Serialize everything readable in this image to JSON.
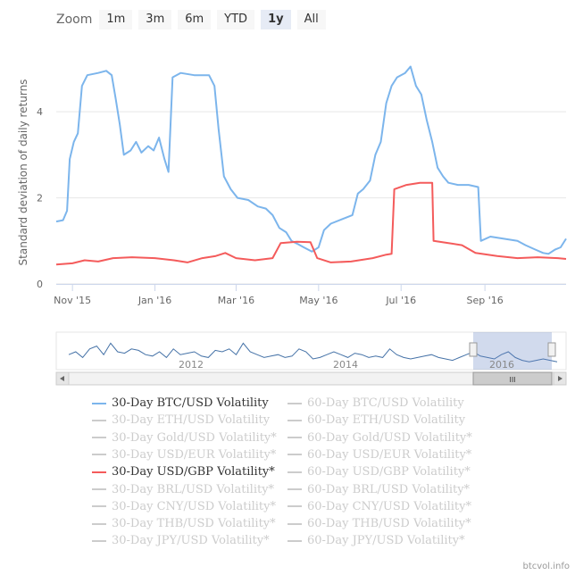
{
  "zoom": {
    "label": "Zoom",
    "buttons": [
      "1m",
      "3m",
      "6m",
      "YTD",
      "1y",
      "All"
    ],
    "selected": "1y"
  },
  "chart_data": {
    "type": "line",
    "ylabel": "Standard deviation of daily returns",
    "ylim": [
      0,
      5.6
    ],
    "yticks": [
      0,
      2,
      4
    ],
    "xlim": [
      "2015-10-20",
      "2016-10-31"
    ],
    "xticks": [
      {
        "date": "2015-11-01",
        "label": "Nov '15"
      },
      {
        "date": "2016-01-01",
        "label": "Jan '16"
      },
      {
        "date": "2016-03-01",
        "label": "Mar '16"
      },
      {
        "date": "2016-05-01",
        "label": "May '16"
      },
      {
        "date": "2016-07-01",
        "label": "Jul '16"
      },
      {
        "date": "2016-09-01",
        "label": "Sep '16"
      }
    ],
    "grid": true,
    "series": [
      {
        "name": "30-Day BTC/USD Volatility",
        "color": "#7cb5ec",
        "points": [
          [
            "2015-10-20",
            1.45
          ],
          [
            "2015-10-25",
            1.48
          ],
          [
            "2015-10-28",
            1.7
          ],
          [
            "2015-10-30",
            2.9
          ],
          [
            "2015-11-02",
            3.3
          ],
          [
            "2015-11-05",
            3.5
          ],
          [
            "2015-11-08",
            4.6
          ],
          [
            "2015-11-12",
            4.85
          ],
          [
            "2015-11-20",
            4.9
          ],
          [
            "2015-11-26",
            4.95
          ],
          [
            "2015-11-30",
            4.85
          ],
          [
            "2015-12-03",
            4.3
          ],
          [
            "2015-12-06",
            3.7
          ],
          [
            "2015-12-09",
            3.0
          ],
          [
            "2015-12-14",
            3.1
          ],
          [
            "2015-12-18",
            3.3
          ],
          [
            "2015-12-22",
            3.05
          ],
          [
            "2015-12-27",
            3.2
          ],
          [
            "2015-12-31",
            3.1
          ],
          [
            "2016-01-04",
            3.4
          ],
          [
            "2016-01-08",
            2.9
          ],
          [
            "2016-01-11",
            2.6
          ],
          [
            "2016-01-14",
            4.8
          ],
          [
            "2016-01-20",
            4.9
          ],
          [
            "2016-01-30",
            4.85
          ],
          [
            "2016-02-10",
            4.85
          ],
          [
            "2016-02-14",
            4.6
          ],
          [
            "2016-02-17",
            3.6
          ],
          [
            "2016-02-21",
            2.5
          ],
          [
            "2016-02-26",
            2.2
          ],
          [
            "2016-03-02",
            2.0
          ],
          [
            "2016-03-10",
            1.95
          ],
          [
            "2016-03-17",
            1.8
          ],
          [
            "2016-03-23",
            1.75
          ],
          [
            "2016-03-28",
            1.6
          ],
          [
            "2016-04-02",
            1.3
          ],
          [
            "2016-04-07",
            1.2
          ],
          [
            "2016-04-11",
            1.0
          ],
          [
            "2016-04-16",
            0.92
          ],
          [
            "2016-04-20",
            0.85
          ],
          [
            "2016-04-26",
            0.75
          ],
          [
            "2016-05-01",
            0.85
          ],
          [
            "2016-05-05",
            1.25
          ],
          [
            "2016-05-10",
            1.4
          ],
          [
            "2016-05-18",
            1.5
          ],
          [
            "2016-05-26",
            1.6
          ],
          [
            "2016-05-30",
            2.1
          ],
          [
            "2016-06-03",
            2.2
          ],
          [
            "2016-06-08",
            2.4
          ],
          [
            "2016-06-12",
            3.0
          ],
          [
            "2016-06-16",
            3.3
          ],
          [
            "2016-06-20",
            4.2
          ],
          [
            "2016-06-24",
            4.6
          ],
          [
            "2016-06-28",
            4.8
          ],
          [
            "2016-07-04",
            4.9
          ],
          [
            "2016-07-08",
            5.05
          ],
          [
            "2016-07-12",
            4.6
          ],
          [
            "2016-07-16",
            4.4
          ],
          [
            "2016-07-20",
            3.8
          ],
          [
            "2016-07-24",
            3.3
          ],
          [
            "2016-07-28",
            2.7
          ],
          [
            "2016-08-01",
            2.5
          ],
          [
            "2016-08-05",
            2.35
          ],
          [
            "2016-08-12",
            2.3
          ],
          [
            "2016-08-20",
            2.3
          ],
          [
            "2016-08-27",
            2.25
          ],
          [
            "2016-08-29",
            1.0
          ],
          [
            "2016-09-05",
            1.1
          ],
          [
            "2016-09-15",
            1.05
          ],
          [
            "2016-09-25",
            1.0
          ],
          [
            "2016-10-01",
            0.9
          ],
          [
            "2016-10-08",
            0.8
          ],
          [
            "2016-10-14",
            0.72
          ],
          [
            "2016-10-18",
            0.7
          ],
          [
            "2016-10-23",
            0.8
          ],
          [
            "2016-10-27",
            0.85
          ],
          [
            "2016-10-31",
            1.05
          ]
        ]
      },
      {
        "name": "30-Day USD/GBP Volatility*",
        "color": "#f45b5b",
        "points": [
          [
            "2015-10-20",
            0.45
          ],
          [
            "2015-11-01",
            0.48
          ],
          [
            "2015-11-10",
            0.55
          ],
          [
            "2015-11-20",
            0.52
          ],
          [
            "2015-12-01",
            0.6
          ],
          [
            "2015-12-15",
            0.62
          ],
          [
            "2016-01-01",
            0.6
          ],
          [
            "2016-01-15",
            0.55
          ],
          [
            "2016-01-25",
            0.5
          ],
          [
            "2016-02-05",
            0.6
          ],
          [
            "2016-02-15",
            0.65
          ],
          [
            "2016-02-22",
            0.72
          ],
          [
            "2016-03-01",
            0.6
          ],
          [
            "2016-03-15",
            0.55
          ],
          [
            "2016-03-28",
            0.6
          ],
          [
            "2016-04-03",
            0.95
          ],
          [
            "2016-04-15",
            0.98
          ],
          [
            "2016-04-25",
            0.97
          ],
          [
            "2016-04-30",
            0.6
          ],
          [
            "2016-05-10",
            0.5
          ],
          [
            "2016-05-25",
            0.52
          ],
          [
            "2016-06-10",
            0.6
          ],
          [
            "2016-06-20",
            0.68
          ],
          [
            "2016-06-24",
            0.7
          ],
          [
            "2016-06-26",
            2.2
          ],
          [
            "2016-07-05",
            2.3
          ],
          [
            "2016-07-15",
            2.35
          ],
          [
            "2016-07-24",
            2.35
          ],
          [
            "2016-07-25",
            1.0
          ],
          [
            "2016-08-05",
            0.95
          ],
          [
            "2016-08-15",
            0.9
          ],
          [
            "2016-08-25",
            0.72
          ],
          [
            "2016-09-10",
            0.65
          ],
          [
            "2016-09-25",
            0.6
          ],
          [
            "2016-10-10",
            0.62
          ],
          [
            "2016-10-25",
            0.6
          ],
          [
            "2016-10-31",
            0.58
          ]
        ]
      }
    ],
    "navigator": {
      "labels": [
        "2012",
        "2014",
        "2016"
      ],
      "series": [
        0.4,
        0.5,
        0.3,
        0.6,
        0.7,
        0.4,
        0.8,
        0.5,
        0.45,
        0.6,
        0.55,
        0.4,
        0.35,
        0.5,
        0.3,
        0.6,
        0.4,
        0.45,
        0.5,
        0.35,
        0.3,
        0.55,
        0.5,
        0.6,
        0.4,
        0.8,
        0.5,
        0.4,
        0.3,
        0.35,
        0.4,
        0.3,
        0.35,
        0.6,
        0.5,
        0.25,
        0.3,
        0.4,
        0.5,
        0.4,
        0.3,
        0.45,
        0.4,
        0.3,
        0.35,
        0.3,
        0.6,
        0.4,
        0.3,
        0.25,
        0.3,
        0.35,
        0.4,
        0.3,
        0.25,
        0.2,
        0.3,
        0.4,
        0.5,
        0.35,
        0.3,
        0.25,
        0.4,
        0.5,
        0.3,
        0.2,
        0.15,
        0.2,
        0.25,
        0.2,
        0.15
      ],
      "range_label": "III"
    }
  },
  "legend": {
    "columns": [
      [
        {
          "label": "30-Day BTC/USD Volatility",
          "on": true,
          "color": "#7cb5ec"
        },
        {
          "label": "30-Day ETH/USD Volatility",
          "on": false
        },
        {
          "label": "30-Day Gold/USD Volatility*",
          "on": false
        },
        {
          "label": "30-Day USD/EUR Volatility*",
          "on": false
        },
        {
          "label": "30-Day USD/GBP Volatility*",
          "on": true,
          "color": "#f45b5b"
        },
        {
          "label": "30-Day BRL/USD Volatility*",
          "on": false
        },
        {
          "label": "30-Day CNY/USD Volatility*",
          "on": false
        },
        {
          "label": "30-Day THB/USD Volatility*",
          "on": false
        },
        {
          "label": "30-Day JPY/USD Volatility*",
          "on": false
        }
      ],
      [
        {
          "label": "60-Day BTC/USD Volatility",
          "on": false
        },
        {
          "label": "60-Day ETH/USD Volatility",
          "on": false
        },
        {
          "label": "60-Day Gold/USD Volatility*",
          "on": false
        },
        {
          "label": "60-Day USD/EUR Volatility*",
          "on": false
        },
        {
          "label": "60-Day USD/GBP Volatility*",
          "on": false
        },
        {
          "label": "60-Day BRL/USD Volatility*",
          "on": false
        },
        {
          "label": "60-Day CNY/USD Volatility*",
          "on": false
        },
        {
          "label": "60-Day THB/USD Volatility*",
          "on": false
        },
        {
          "label": "60-Day JPY/USD Volatility*",
          "on": false
        }
      ]
    ]
  },
  "credit": "btcvol.info"
}
